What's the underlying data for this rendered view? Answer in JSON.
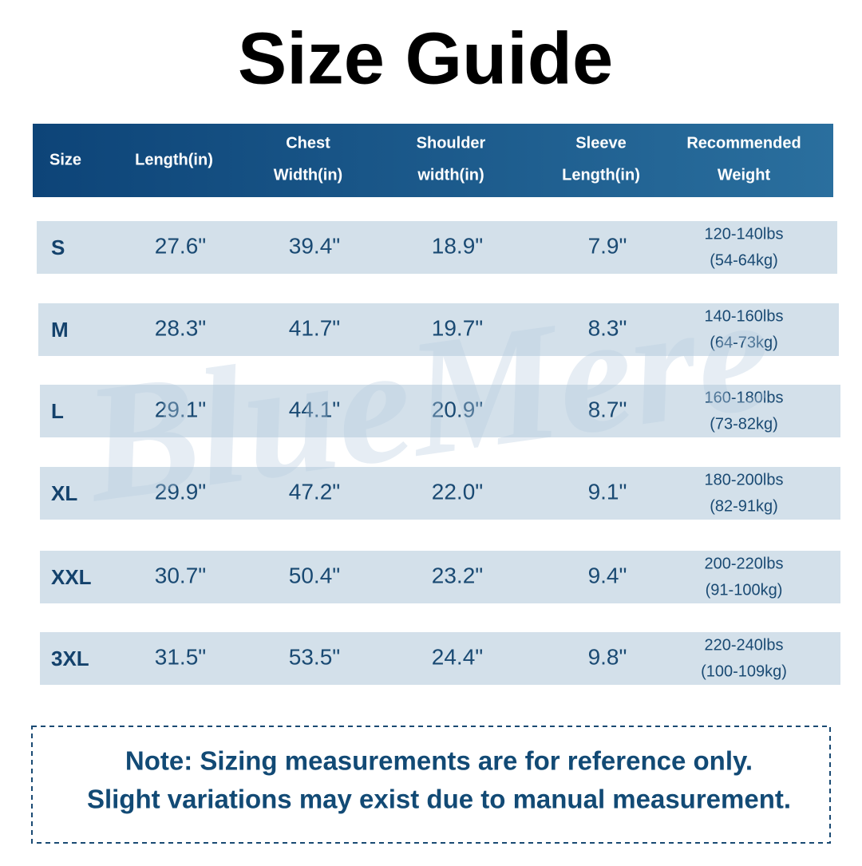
{
  "title": "Size Guide",
  "watermark": "BlueMere",
  "table": {
    "headers": [
      [
        "Size"
      ],
      [
        "Length(in)"
      ],
      [
        "Chest",
        "Width(in)"
      ],
      [
        "Shoulder",
        "width(in)"
      ],
      [
        "Sleeve",
        "Length(in)"
      ],
      [
        "Recommended",
        "Weight"
      ]
    ],
    "rows": [
      [
        "S",
        "27.6\"",
        "39.4\"",
        "18.9\"",
        "7.9\"",
        [
          "120-140lbs",
          "(54-64kg)"
        ]
      ],
      [
        "M",
        "28.3\"",
        "41.7\"",
        "19.7\"",
        "8.3\"",
        [
          "140-160lbs",
          "(64-73kg)"
        ]
      ],
      [
        "L",
        "29.1\"",
        "44.1\"",
        "20.9\"",
        "8.7\"",
        [
          "160-180lbs",
          "(73-82kg)"
        ]
      ],
      [
        "XL",
        "29.9\"",
        "47.2\"",
        "22.0\"",
        "9.1\"",
        [
          "180-200lbs",
          "(82-91kg)"
        ]
      ],
      [
        "XXL",
        "30.7\"",
        "50.4\"",
        "23.2\"",
        "9.4\"",
        [
          "200-220lbs",
          "(91-100kg)"
        ]
      ],
      [
        "3XL",
        "31.5\"",
        "53.5\"",
        "24.4\"",
        "9.8\"",
        [
          "220-240lbs",
          "(100-109kg)"
        ]
      ]
    ]
  },
  "note": [
    "Note: Sizing measurements are for reference only.",
    "Slight variations may exist due to manual measurement."
  ]
}
